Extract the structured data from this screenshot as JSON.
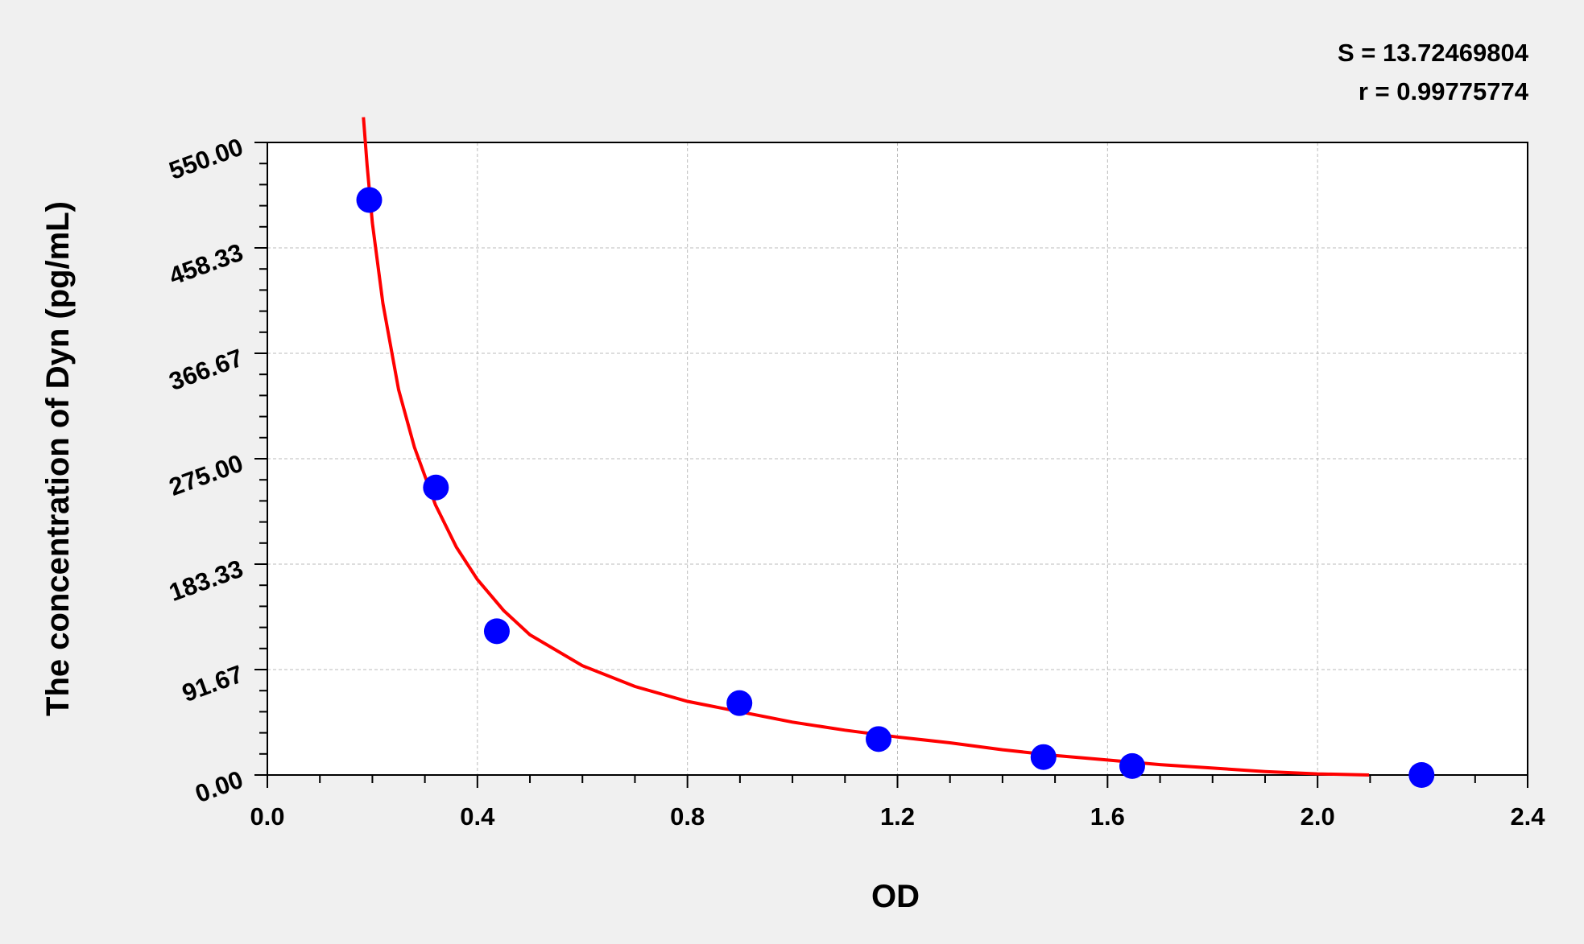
{
  "chart_data": {
    "type": "scatter",
    "xlabel": "OD",
    "ylabel": "The concentration of Dyn (pg/mL)",
    "xlim": [
      0,
      2.4
    ],
    "ylim": [
      0,
      550
    ],
    "x_ticks": [
      "0.0",
      "0.4",
      "0.8",
      "1.2",
      "1.6",
      "2.0",
      "2.4"
    ],
    "y_ticks": [
      "0.00",
      "91.67",
      "183.33",
      "275.00",
      "366.67",
      "458.33",
      "550.00"
    ],
    "grid": true,
    "annotations": [
      "S = 13.72469804",
      "r = 0.99775774"
    ],
    "colors": {
      "points": "#0000ff",
      "curve": "#ff0000",
      "background": "#f0f0f0",
      "plot": "#ffffff"
    },
    "points": {
      "x": [
        0.194,
        0.321,
        0.437,
        0.899,
        1.164,
        1.478,
        1.647,
        2.198
      ],
      "y": [
        500,
        250,
        125,
        62.5,
        31.25,
        15.6,
        7.8,
        0
      ]
    },
    "fit_curve": {
      "x": [
        0.183,
        0.19,
        0.2,
        0.22,
        0.25,
        0.28,
        0.32,
        0.36,
        0.4,
        0.45,
        0.5,
        0.6,
        0.7,
        0.8,
        0.9,
        1.0,
        1.1,
        1.2,
        1.3,
        1.4,
        1.5,
        1.6,
        1.7,
        1.8,
        1.9,
        2.0,
        2.098
      ],
      "y": [
        572,
        530,
        480,
        410,
        335,
        285,
        235,
        198,
        170,
        143,
        122,
        95,
        77,
        64,
        55,
        46,
        39,
        33,
        28,
        22,
        17,
        13,
        9,
        6,
        3,
        1,
        0
      ]
    }
  }
}
